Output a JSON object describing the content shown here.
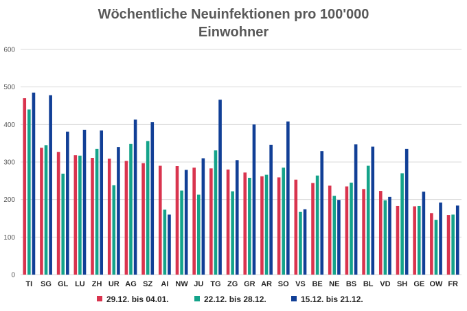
{
  "colors": {
    "series_1": "#d9344e",
    "series_2": "#14a38a",
    "series_3": "#113f96",
    "grid": "#d9d9d9",
    "text": "#595959"
  },
  "chart_data": {
    "type": "bar",
    "title_lines": [
      "Wöchentliche Neuinfektionen pro 100'000",
      "Einwohner"
    ],
    "xlabel": "",
    "ylabel": "",
    "ylim": [
      0,
      600
    ],
    "yticks": [
      0,
      100,
      200,
      300,
      400,
      500,
      600
    ],
    "grid": true,
    "legend_position": "bottom",
    "categories": [
      "TI",
      "SG",
      "GL",
      "LU",
      "ZH",
      "UR",
      "AG",
      "SZ",
      "AI",
      "NW",
      "JU",
      "TG",
      "ZG",
      "GR",
      "AR",
      "SO",
      "VS",
      "BE",
      "NE",
      "BS",
      "BL",
      "VD",
      "SH",
      "GE",
      "OW",
      "FR"
    ],
    "series": [
      {
        "name": "29.12. bis 04.01.",
        "values": [
          470,
          338,
          327,
          318,
          311,
          309,
          303,
          297,
          290,
          289,
          285,
          283,
          280,
          272,
          262,
          259,
          253,
          244,
          237,
          235,
          228,
          223,
          183,
          182,
          164,
          159
        ]
      },
      {
        "name": "22.12. bis 28.12.",
        "values": [
          440,
          345,
          269,
          317,
          335,
          238,
          348,
          356,
          173,
          224,
          213,
          331,
          222,
          258,
          266,
          285,
          167,
          264,
          210,
          245,
          290,
          198,
          270,
          183,
          146,
          160
        ]
      },
      {
        "name": "15.12. bis 21.12.",
        "values": [
          485,
          478,
          381,
          386,
          384,
          340,
          413,
          406,
          160,
          279,
          310,
          466,
          305,
          400,
          346,
          408,
          174,
          329,
          199,
          347,
          341,
          207,
          335,
          221,
          192,
          184
        ]
      }
    ]
  }
}
